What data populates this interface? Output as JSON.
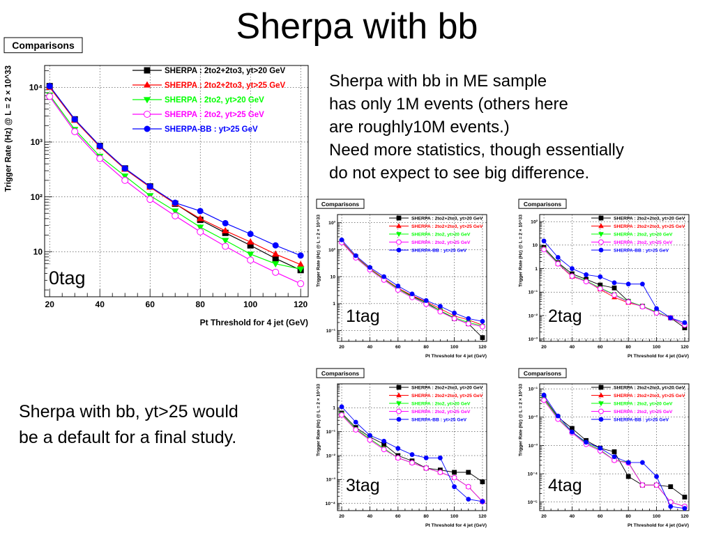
{
  "slide": {
    "title": "Sherpa with bb",
    "note_top": [
      "Sherpa with bb in ME sample",
      "has only 1M events (others here",
      "are roughly10M events.)",
      "Need more statistics, though essentially",
      "do not expect to see big difference."
    ],
    "note_bottom": [
      "Sherpa with bb, yt>25 would",
      "be a default for a final study."
    ]
  },
  "series_styles": [
    {
      "name": "SHERPA : 2to2+2to3, yt>20 GeV",
      "color": "#000000",
      "marker": "square"
    },
    {
      "name": "SHERPA : 2to2+2to3, yt>25 GeV",
      "color": "#ff0000",
      "marker": "triangle-up"
    },
    {
      "name": "SHERPA : 2to2, yt>20 GeV",
      "color": "#00ff00",
      "marker": "triangle-down"
    },
    {
      "name": "SHERPA : 2to2, yt>25 GeV",
      "color": "#ff00ff",
      "marker": "circle-open"
    },
    {
      "name": "SHERPA-BB : yt>25 GeV",
      "color": "#0000ff",
      "marker": "circle"
    }
  ],
  "chart_data": [
    {
      "id": "0tag",
      "type": "line",
      "frame_label": "Comparisons",
      "tag": "0tag",
      "xlabel": "Pt Threshold for 4 jet (GeV)",
      "ylabel": "Trigger Rate (Hz) @ L = 2 × 10^33",
      "y_scale": "log",
      "xlim": [
        18,
        123
      ],
      "ylim": [
        1.5,
        25000
      ],
      "x": [
        20,
        30,
        40,
        50,
        60,
        70,
        80,
        90,
        100,
        110,
        120
      ],
      "xticks": [
        20,
        40,
        60,
        80,
        100,
        120
      ],
      "yticks": [
        {
          "v": 10,
          "label": "10"
        },
        {
          "v": 100,
          "label": "10²"
        },
        {
          "v": 1000,
          "label": "10³"
        },
        {
          "v": 10000,
          "label": "10⁴"
        }
      ],
      "series": [
        {
          "name": "SHERPA : 2to2+2to3, yt>20 GeV",
          "values": [
            10500,
            2600,
            850,
            330,
            155,
            75,
            38,
            22,
            13,
            7.5,
            4.6
          ]
        },
        {
          "name": "SHERPA : 2to2+2to3, yt>25 GeV",
          "values": [
            10000,
            2500,
            820,
            320,
            150,
            75,
            40,
            24,
            15,
            9,
            5.8
          ]
        },
        {
          "name": "SHERPA : 2to2, yt>20 GeV",
          "values": [
            7200,
            1700,
            550,
            240,
            105,
            55,
            28,
            16,
            9,
            6,
            4.8
          ]
        },
        {
          "name": "SHERPA : 2to2, yt>25 GeV",
          "values": [
            6800,
            1550,
            500,
            200,
            90,
            45,
            23,
            12.5,
            7,
            4.2,
            2.6
          ]
        },
        {
          "name": "SHERPA-BB : yt>25 GeV",
          "values": [
            10500,
            2600,
            850,
            330,
            155,
            78,
            55,
            33,
            21,
            13,
            8.5
          ]
        }
      ]
    },
    {
      "id": "1tag",
      "type": "line",
      "frame_label": "Comparisons",
      "tag": "1tag",
      "xlabel": "Pt Threshold for 4 jet (GeV)",
      "ylabel": "Trigger Rate (Hz) @ L = 2 × 10^33",
      "y_scale": "log",
      "xlim": [
        17,
        123
      ],
      "ylim": [
        0.04,
        2000
      ],
      "x": [
        20,
        30,
        40,
        50,
        60,
        70,
        80,
        90,
        100,
        110,
        120
      ],
      "xticks": [
        20,
        40,
        60,
        80,
        100,
        120
      ],
      "yticks": [
        {
          "v": 0.1,
          "label": "10⁻¹"
        },
        {
          "v": 1,
          "label": "1"
        },
        {
          "v": 10,
          "label": "10"
        },
        {
          "v": 100,
          "label": "10²"
        },
        {
          "v": 1000,
          "label": "10³"
        }
      ],
      "series": [
        {
          "name": "SHERPA : 2to2+2to3, yt>20 GeV",
          "values": [
            200,
            55,
            20,
            8.5,
            3.5,
            1.9,
            1.1,
            0.55,
            0.28,
            0.18,
            0.055
          ]
        },
        {
          "name": "SHERPA : 2to2+2to3, yt>25 GeV",
          "values": [
            200,
            55,
            20,
            8.5,
            3.8,
            2,
            1.2,
            0.65,
            0.35,
            0.25,
            0.16
          ]
        },
        {
          "name": "SHERPA : 2to2, yt>20 GeV",
          "values": [
            190,
            52,
            19,
            8,
            3.5,
            1.8,
            1,
            0.55,
            0.3,
            0.2,
            0.15
          ]
        },
        {
          "name": "SHERPA : 2to2, yt>25 GeV",
          "values": [
            185,
            50,
            18,
            7.5,
            3.2,
            1.7,
            0.95,
            0.5,
            0.28,
            0.18,
            0.14
          ]
        },
        {
          "name": "SHERPA-BB : yt>25 GeV",
          "values": [
            230,
            60,
            22,
            10,
            4.5,
            2.3,
            1.3,
            0.8,
            0.45,
            0.28,
            0.22
          ]
        }
      ]
    },
    {
      "id": "2tag",
      "type": "line",
      "frame_label": "Comparisons",
      "tag": "2tag",
      "xlabel": "Pt Threshold for 4 jet (GeV)",
      "ylabel": "Trigger Rate (Hz) @ L = 2 × 10^33",
      "y_scale": "log",
      "xlim": [
        17,
        123
      ],
      "ylim": [
        0.0008,
        200
      ],
      "x": [
        20,
        30,
        40,
        50,
        60,
        70,
        80,
        90,
        100,
        110,
        120
      ],
      "xticks": [
        20,
        40,
        60,
        80,
        100,
        120
      ],
      "yticks": [
        {
          "v": 0.001,
          "label": "10⁻³"
        },
        {
          "v": 0.01,
          "label": "10⁻²"
        },
        {
          "v": 0.1,
          "label": "10⁻¹"
        },
        {
          "v": 1,
          "label": "1"
        },
        {
          "v": 10,
          "label": "10"
        },
        {
          "v": 100,
          "label": "10²"
        }
      ],
      "series": [
        {
          "name": "SHERPA : 2to2+2to3, yt>20 GeV",
          "values": [
            8,
            1.8,
            0.6,
            0.35,
            0.2,
            0.15,
            0.04,
            0.025,
            0.014,
            0.008,
            0.003
          ]
        },
        {
          "name": "SHERPA : 2to2+2to3, yt>25 GeV",
          "values": [
            7,
            1.6,
            0.45,
            0.3,
            0.13,
            0.06,
            0.035,
            0.025,
            0.014,
            0.008,
            0.004
          ]
        },
        {
          "name": "SHERPA : 2to2, yt>20 GeV",
          "values": [
            7,
            1.7,
            0.5,
            0.3,
            0.15,
            0.08,
            0.04,
            0.025,
            0.014,
            0.008,
            0.004
          ]
        },
        {
          "name": "SHERPA : 2to2, yt>25 GeV",
          "values": [
            6.5,
            1.6,
            0.48,
            0.28,
            0.14,
            0.075,
            0.038,
            0.024,
            0.013,
            0.008,
            0.004
          ]
        },
        {
          "name": "SHERPA-BB : yt>25 GeV",
          "values": [
            15,
            3,
            1,
            0.55,
            0.45,
            0.25,
            0.22,
            0.22,
            0.02,
            0.008,
            0.005
          ]
        }
      ]
    },
    {
      "id": "3tag",
      "type": "line",
      "frame_label": "Comparisons",
      "tag": "3tag",
      "xlabel": "Pt Threshold for 4 jet (GeV)",
      "ylabel": "Trigger Rate (Hz) @ L = 2 × 10^33",
      "y_scale": "log",
      "xlim": [
        17,
        123
      ],
      "ylim": [
        5e-05,
        10
      ],
      "x": [
        20,
        30,
        40,
        50,
        60,
        70,
        80,
        90,
        100,
        110,
        120
      ],
      "xticks": [
        20,
        40,
        60,
        80,
        100,
        120
      ],
      "yticks": [
        {
          "v": 0.0001,
          "label": "10⁻⁴"
        },
        {
          "v": 0.001,
          "label": "10⁻³"
        },
        {
          "v": 0.01,
          "label": "10⁻²"
        },
        {
          "v": 0.1,
          "label": "10⁻¹"
        },
        {
          "v": 1,
          "label": "1"
        }
      ],
      "series": [
        {
          "name": "SHERPA : 2to2+2to3, yt>20 GeV",
          "values": [
            0.6,
            0.15,
            0.06,
            0.03,
            0.01,
            0.006,
            0.003,
            0.0025,
            0.002,
            0.002,
            0.0008
          ]
        },
        {
          "name": "SHERPA : 2to2+2to3, yt>25 GeV",
          "values": [
            0.5,
            0.12,
            0.05,
            0.02,
            0.008,
            0.005,
            0.003,
            0.002,
            0.0012,
            0.0005,
            0.00012
          ]
        },
        {
          "name": "SHERPA : 2to2, yt>20 GeV",
          "values": [
            0.55,
            0.13,
            0.05,
            0.02,
            0.008,
            0.005,
            0.003,
            0.002,
            0.0012,
            0.0005,
            0.00012
          ]
        },
        {
          "name": "SHERPA : 2to2, yt>25 GeV",
          "values": [
            0.5,
            0.12,
            0.045,
            0.018,
            0.008,
            0.005,
            0.003,
            0.002,
            0.0012,
            0.0005,
            0.00012
          ]
        },
        {
          "name": "SHERPA-BB : yt>25 GeV",
          "values": [
            1.1,
            0.25,
            0.07,
            0.04,
            0.02,
            0.011,
            0.008,
            0.008,
            0.0005,
            0.00015,
            0.00012
          ]
        }
      ]
    },
    {
      "id": "4tag",
      "type": "line",
      "frame_label": "Comparisons",
      "tag": "4tag",
      "xlabel": "Pt Threshold for 4 jet (GeV)",
      "ylabel": "Trigger Rate (Hz) @ L = 2 × 10^33",
      "y_scale": "log",
      "xlim": [
        17,
        123
      ],
      "ylim": [
        5e-06,
        0.15
      ],
      "x": [
        20,
        30,
        40,
        50,
        60,
        70,
        80,
        90,
        100,
        110,
        120
      ],
      "xticks": [
        20,
        40,
        60,
        80,
        100,
        120
      ],
      "yticks": [
        {
          "v": 1e-05,
          "label": "10⁻⁵"
        },
        {
          "v": 0.0001,
          "label": "10⁻⁴"
        },
        {
          "v": 0.001,
          "label": "10⁻³"
        },
        {
          "v": 0.01,
          "label": "10⁻²"
        },
        {
          "v": 0.1,
          "label": "10⁻¹"
        }
      ],
      "series": [
        {
          "name": "SHERPA : 2to2+2to3, yt>20 GeV",
          "values": [
            0.05,
            0.01,
            0.004,
            0.0015,
            0.0008,
            0.0006,
            8e-05,
            4e-05,
            4e-05,
            3.5e-05,
            1.5e-05
          ]
        },
        {
          "name": "SHERPA : 2to2+2to3, yt>25 GeV",
          "values": [
            0.04,
            0.009,
            0.003,
            0.0012,
            0.0007,
            0.0003,
            0.00025,
            4e-05,
            4e-05,
            1e-05,
            7e-06
          ]
        },
        {
          "name": "SHERPA : 2to2, yt>20 GeV",
          "values": [
            0.045,
            0.009,
            0.003,
            0.0012,
            0.0007,
            0.0003,
            0.00025,
            4e-05,
            4e-05,
            1e-05,
            7e-06
          ]
        },
        {
          "name": "SHERPA : 2to2, yt>25 GeV",
          "values": [
            0.04,
            0.0085,
            0.0028,
            0.0011,
            0.00065,
            0.0003,
            0.00024,
            4e-05,
            4e-05,
            1e-05,
            7e-06
          ]
        },
        {
          "name": "SHERPA-BB : yt>25 GeV",
          "values": [
            0.06,
            0.011,
            0.003,
            0.0013,
            0.0008,
            0.0004,
            0.00025,
            0.00025,
            8e-05,
            7e-06,
            6e-06
          ]
        }
      ]
    }
  ]
}
